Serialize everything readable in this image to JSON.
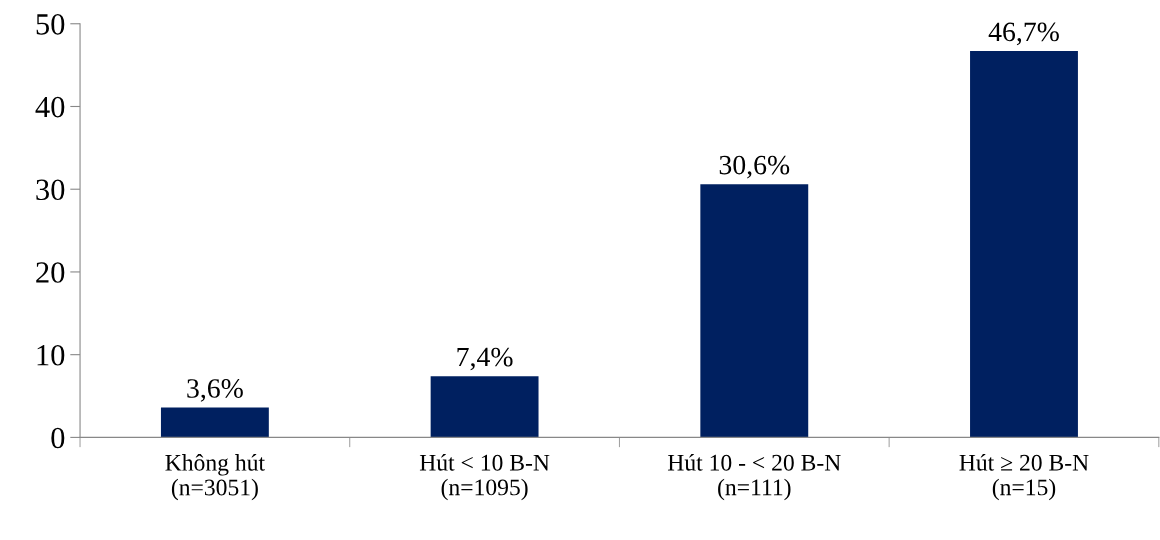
{
  "chart_data": {
    "type": "bar",
    "categories": [
      "Không hút\n(n=3051)",
      "Hút < 10 B-N\n(n=1095)",
      "Hút 10 - < 20 B-N\n(n=111)",
      "Hút ≥ 20 B-N\n(n=15)"
    ],
    "values": [
      3.6,
      7.4,
      30.6,
      46.7
    ],
    "value_labels": [
      "3,6%",
      "7,4%",
      "30,6%",
      "46,7%"
    ],
    "color": "#002060",
    "ylim": [
      0,
      50
    ],
    "yticks": [
      0,
      10,
      20,
      30,
      40,
      50
    ],
    "grid": false,
    "legend": false
  }
}
